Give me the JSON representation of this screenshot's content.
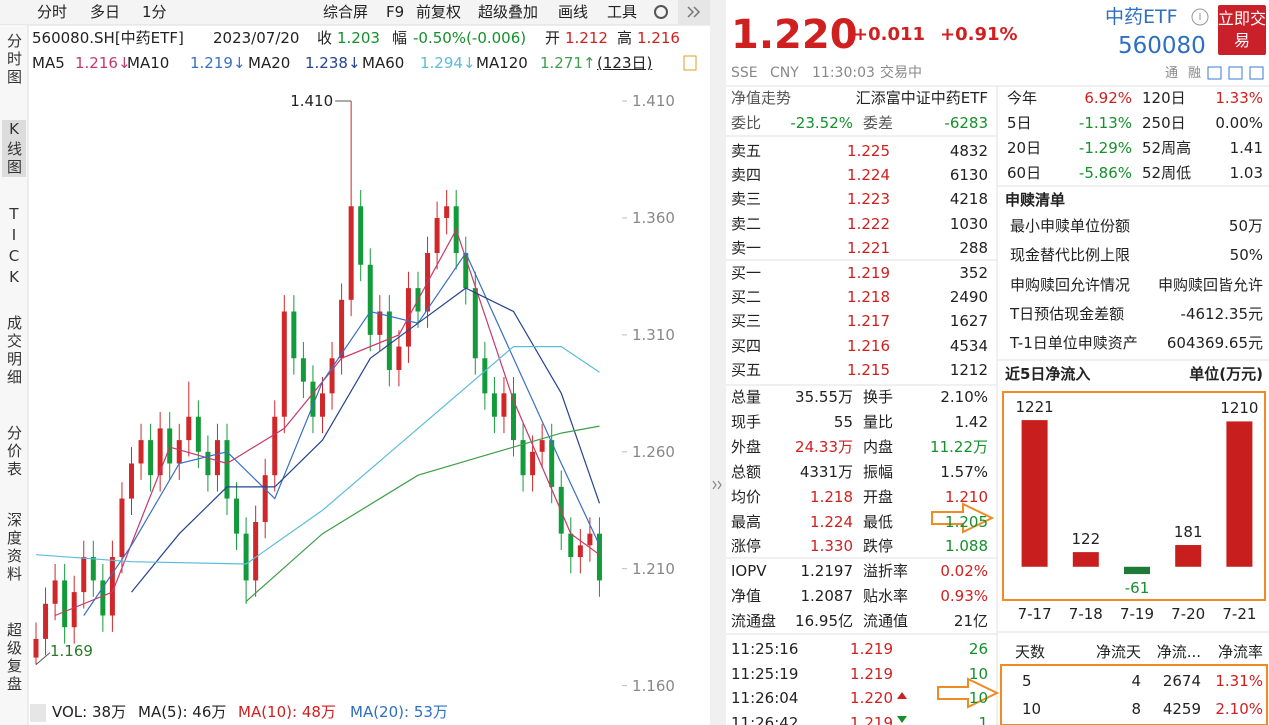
{
  "toolbar": {
    "left": [
      "分时",
      "多日",
      "1分"
    ],
    "right": [
      "综合屏",
      "F9",
      "前复权",
      "超级叠加",
      "画线",
      "工具"
    ]
  },
  "side_tabs": [
    "分时图",
    "K线图",
    "TICK",
    "成交明细",
    "分价表",
    "深度资料",
    "超级复盘"
  ],
  "info_line": {
    "code": "560080.SH[中药ETF]",
    "date": "2023/07/20",
    "close_label": "收",
    "close": "1.203",
    "range_label": "幅",
    "range": "-0.50%(-0.006)",
    "open_label": "开",
    "open": "1.212",
    "high_label": "高",
    "high": "1.216"
  },
  "chart_data": [
    {
      "type": "candlestick",
      "open": [
        1.172,
        1.18,
        1.195,
        1.205,
        1.185,
        1.2,
        1.215,
        1.205,
        1.19,
        1.215,
        1.24,
        1.255,
        1.265,
        1.25,
        1.27,
        1.255,
        1.265,
        1.275,
        1.26,
        1.25,
        1.265,
        1.24,
        1.225,
        1.205,
        1.23,
        1.25,
        1.275,
        1.32,
        1.3,
        1.29,
        1.275,
        1.285,
        1.3,
        1.325,
        1.365,
        1.34,
        1.31,
        1.32,
        1.295,
        1.305,
        1.33,
        1.32,
        1.345,
        1.36,
        1.365,
        1.345,
        1.33,
        1.3,
        1.285,
        1.275,
        1.285,
        1.265,
        1.25,
        1.26,
        1.265,
        1.245,
        1.225,
        1.215,
        1.22,
        1.225
      ],
      "high": [
        1.187,
        1.202,
        1.212,
        1.212,
        1.207,
        1.222,
        1.222,
        1.212,
        1.222,
        1.247,
        1.262,
        1.272,
        1.272,
        1.277,
        1.277,
        1.272,
        1.29,
        1.282,
        1.267,
        1.272,
        1.272,
        1.247,
        1.232,
        1.237,
        1.257,
        1.282,
        1.327,
        1.327,
        1.307,
        1.297,
        1.292,
        1.307,
        1.332,
        1.41,
        1.372,
        1.347,
        1.327,
        1.327,
        1.312,
        1.337,
        1.337,
        1.352,
        1.367,
        1.372,
        1.372,
        1.352,
        1.337,
        1.307,
        1.292,
        1.292,
        1.292,
        1.272,
        1.267,
        1.272,
        1.272,
        1.252,
        1.232,
        1.227,
        1.232,
        1.232
      ],
      "low": [
        1.169,
        1.173,
        1.188,
        1.178,
        1.178,
        1.193,
        1.198,
        1.183,
        1.183,
        1.208,
        1.233,
        1.248,
        1.243,
        1.243,
        1.248,
        1.248,
        1.258,
        1.253,
        1.243,
        1.243,
        1.233,
        1.218,
        1.195,
        1.198,
        1.223,
        1.243,
        1.268,
        1.293,
        1.283,
        1.268,
        1.268,
        1.278,
        1.293,
        1.318,
        1.333,
        1.303,
        1.303,
        1.288,
        1.288,
        1.298,
        1.313,
        1.313,
        1.338,
        1.353,
        1.338,
        1.323,
        1.293,
        1.278,
        1.268,
        1.268,
        1.258,
        1.243,
        1.243,
        1.253,
        1.238,
        1.218,
        1.208,
        1.208,
        1.213,
        1.198
      ],
      "close": [
        1.18,
        1.195,
        1.205,
        1.185,
        1.2,
        1.215,
        1.205,
        1.19,
        1.215,
        1.24,
        1.255,
        1.265,
        1.25,
        1.27,
        1.255,
        1.265,
        1.275,
        1.26,
        1.25,
        1.265,
        1.24,
        1.225,
        1.205,
        1.23,
        1.25,
        1.275,
        1.32,
        1.3,
        1.29,
        1.275,
        1.285,
        1.3,
        1.325,
        1.365,
        1.34,
        1.31,
        1.32,
        1.295,
        1.305,
        1.33,
        1.32,
        1.345,
        1.36,
        1.365,
        1.345,
        1.33,
        1.3,
        1.285,
        1.275,
        1.285,
        1.265,
        1.25,
        1.26,
        1.265,
        1.245,
        1.225,
        1.215,
        1.22,
        1.225,
        1.205
      ],
      "up_color": "#d0282a",
      "down_color": "#139a3a",
      "ylim": [
        1.156,
        1.419
      ],
      "yticks": [
        {
          "value": 1.41,
          "label": "1.410"
        },
        {
          "value": 1.36,
          "label": "1.360"
        },
        {
          "value": 1.31,
          "label": "1.310"
        },
        {
          "value": 1.26,
          "label": "1.260"
        },
        {
          "value": 1.21,
          "label": "1.210"
        },
        {
          "value": 1.16,
          "label": "1.160"
        }
      ],
      "annotations": [
        {
          "value": 1.41,
          "label": "1.410"
        },
        {
          "value": 1.169,
          "label": "1.169"
        }
      ],
      "series": [
        {
          "name": "MA5",
          "value_text": "1.216↓",
          "color": "#c8386a",
          "x": [
            2,
            8,
            14,
            20,
            26,
            32,
            38,
            44,
            50,
            56,
            59
          ],
          "values": [
            1.19,
            1.2,
            1.262,
            1.255,
            1.27,
            1.3,
            1.31,
            1.355,
            1.282,
            1.225,
            1.216
          ]
        },
        {
          "name": "MA10",
          "value_text": "1.219↓",
          "color": "#3a6fc4",
          "x": [
            5,
            10,
            15,
            20,
            25,
            30,
            35,
            40,
            45,
            50,
            55,
            59
          ],
          "values": [
            1.19,
            1.22,
            1.255,
            1.26,
            1.24,
            1.29,
            1.32,
            1.315,
            1.345,
            1.3,
            1.255,
            1.22
          ]
        },
        {
          "name": "MA20",
          "value_text": "1.238↓",
          "color": "#25448f",
          "x": [
            10,
            15,
            20,
            25,
            30,
            35,
            40,
            45,
            50,
            55,
            59
          ],
          "values": [
            1.2,
            1.225,
            1.245,
            1.245,
            1.265,
            1.3,
            1.315,
            1.33,
            1.32,
            1.285,
            1.238
          ]
        },
        {
          "name": "MA60",
          "value_text": "1.294↓",
          "color": "#5cbcd8",
          "x": [
            0,
            10,
            22,
            30,
            40,
            50,
            55,
            59
          ],
          "values": [
            1.216,
            1.213,
            1.212,
            1.235,
            1.27,
            1.305,
            1.305,
            1.294
          ]
        },
        {
          "name": "MA120",
          "value_text": "1.271↑",
          "color": "#3f9f4a",
          "x": [
            22,
            30,
            40,
            50,
            55,
            59
          ],
          "values": [
            1.196,
            1.225,
            1.25,
            1.262,
            1.268,
            1.271
          ]
        }
      ],
      "period": "(123日)"
    },
    {
      "type": "bar",
      "title": "近5日净流入",
      "subtitle": "单位(万元)",
      "categories": [
        "7-17",
        "7-18",
        "7-19",
        "7-20",
        "7-21"
      ],
      "values": [
        1221,
        122,
        -61,
        181,
        1210
      ],
      "color": "#c81e1e",
      "negative_color": "#1e7a34",
      "ylim": [
        -260,
        1430
      ]
    }
  ],
  "volume_legend": [
    "VOL: 38万",
    "MA(5): 46万",
    "MA(10): 48万",
    "MA(20): 53万"
  ],
  "quote": {
    "price": "1.220",
    "change": "+0.011",
    "pct": "+0.91%",
    "name": "中药ETF",
    "code": "560080",
    "trade_button": "立即交易",
    "exchange": "SSE",
    "currency": "CNY",
    "time": "11:30:03",
    "status": "交易中",
    "tags": [
      "通",
      "融"
    ]
  },
  "nav_row": [
    "净值走势",
    "汇添富中证中药ETF"
  ],
  "bid_ratio": [
    "委比",
    "-23.52%",
    "委差",
    "-6283"
  ],
  "sell": [
    [
      "卖五",
      "1.225",
      "4832"
    ],
    [
      "卖四",
      "1.224",
      "6130"
    ],
    [
      "卖三",
      "1.223",
      "4218"
    ],
    [
      "卖二",
      "1.222",
      "1030"
    ],
    [
      "卖一",
      "1.221",
      "288"
    ]
  ],
  "buy": [
    [
      "买一",
      "1.219",
      "352"
    ],
    [
      "买二",
      "1.218",
      "2490"
    ],
    [
      "买三",
      "1.217",
      "1627"
    ],
    [
      "买四",
      "1.216",
      "4534"
    ],
    [
      "买五",
      "1.215",
      "1212"
    ]
  ],
  "stats": [
    [
      "总量",
      "35.55万",
      "换手",
      "2.10%"
    ],
    [
      "现手",
      "55",
      "量比",
      "1.42"
    ],
    [
      "外盘",
      "24.33万",
      "内盘",
      "11.22万"
    ],
    [
      "总额",
      "4331万",
      "振幅",
      "1.57%"
    ],
    [
      "均价",
      "1.218",
      "开盘",
      "1.210"
    ],
    [
      "最高",
      "1.224",
      "最低",
      "1.205"
    ],
    [
      "涨停",
      "1.330",
      "跌停",
      "1.088"
    ]
  ],
  "iopv": [
    [
      "IOPV",
      "1.2197",
      "溢折率",
      "0.02%"
    ],
    [
      "净值",
      "1.2087",
      "贴水率",
      "0.93%"
    ],
    [
      "流通盘",
      "16.95亿",
      "流通值",
      "21亿"
    ]
  ],
  "ticks": [
    [
      "11:25:16",
      "1.219",
      "26"
    ],
    [
      "11:25:19",
      "1.219",
      "10"
    ],
    [
      "11:26:04",
      "1.220",
      "10"
    ],
    [
      "11:26:42",
      "1.219",
      "1"
    ]
  ],
  "performance": [
    [
      "今年",
      "6.92%",
      "120日",
      "1.33%"
    ],
    [
      "5日",
      "-1.13%",
      "250日",
      "0.00%"
    ],
    [
      "20日",
      "-1.29%",
      "52周高",
      "1.41"
    ],
    [
      "60日",
      "-5.86%",
      "52周低",
      "1.03"
    ]
  ],
  "redemption": {
    "title": "申赎清单",
    "rows": [
      [
        "最小申赎单位份额",
        "50万"
      ],
      [
        "现金替代比例上限",
        "50%"
      ],
      [
        "申购赎回允许情况",
        "申购赎回皆允许"
      ],
      [
        "T日预估现金差额",
        "-4612.35元"
      ],
      [
        "T-1日单位申赎资产",
        "604369.65元"
      ]
    ]
  },
  "flow_table": {
    "header": [
      "天数",
      "净流天",
      "净流...",
      "净流率"
    ],
    "rows": [
      [
        "5",
        "4",
        "2674",
        "1.31%"
      ],
      [
        "10",
        "8",
        "4259",
        "2.10%"
      ]
    ]
  }
}
